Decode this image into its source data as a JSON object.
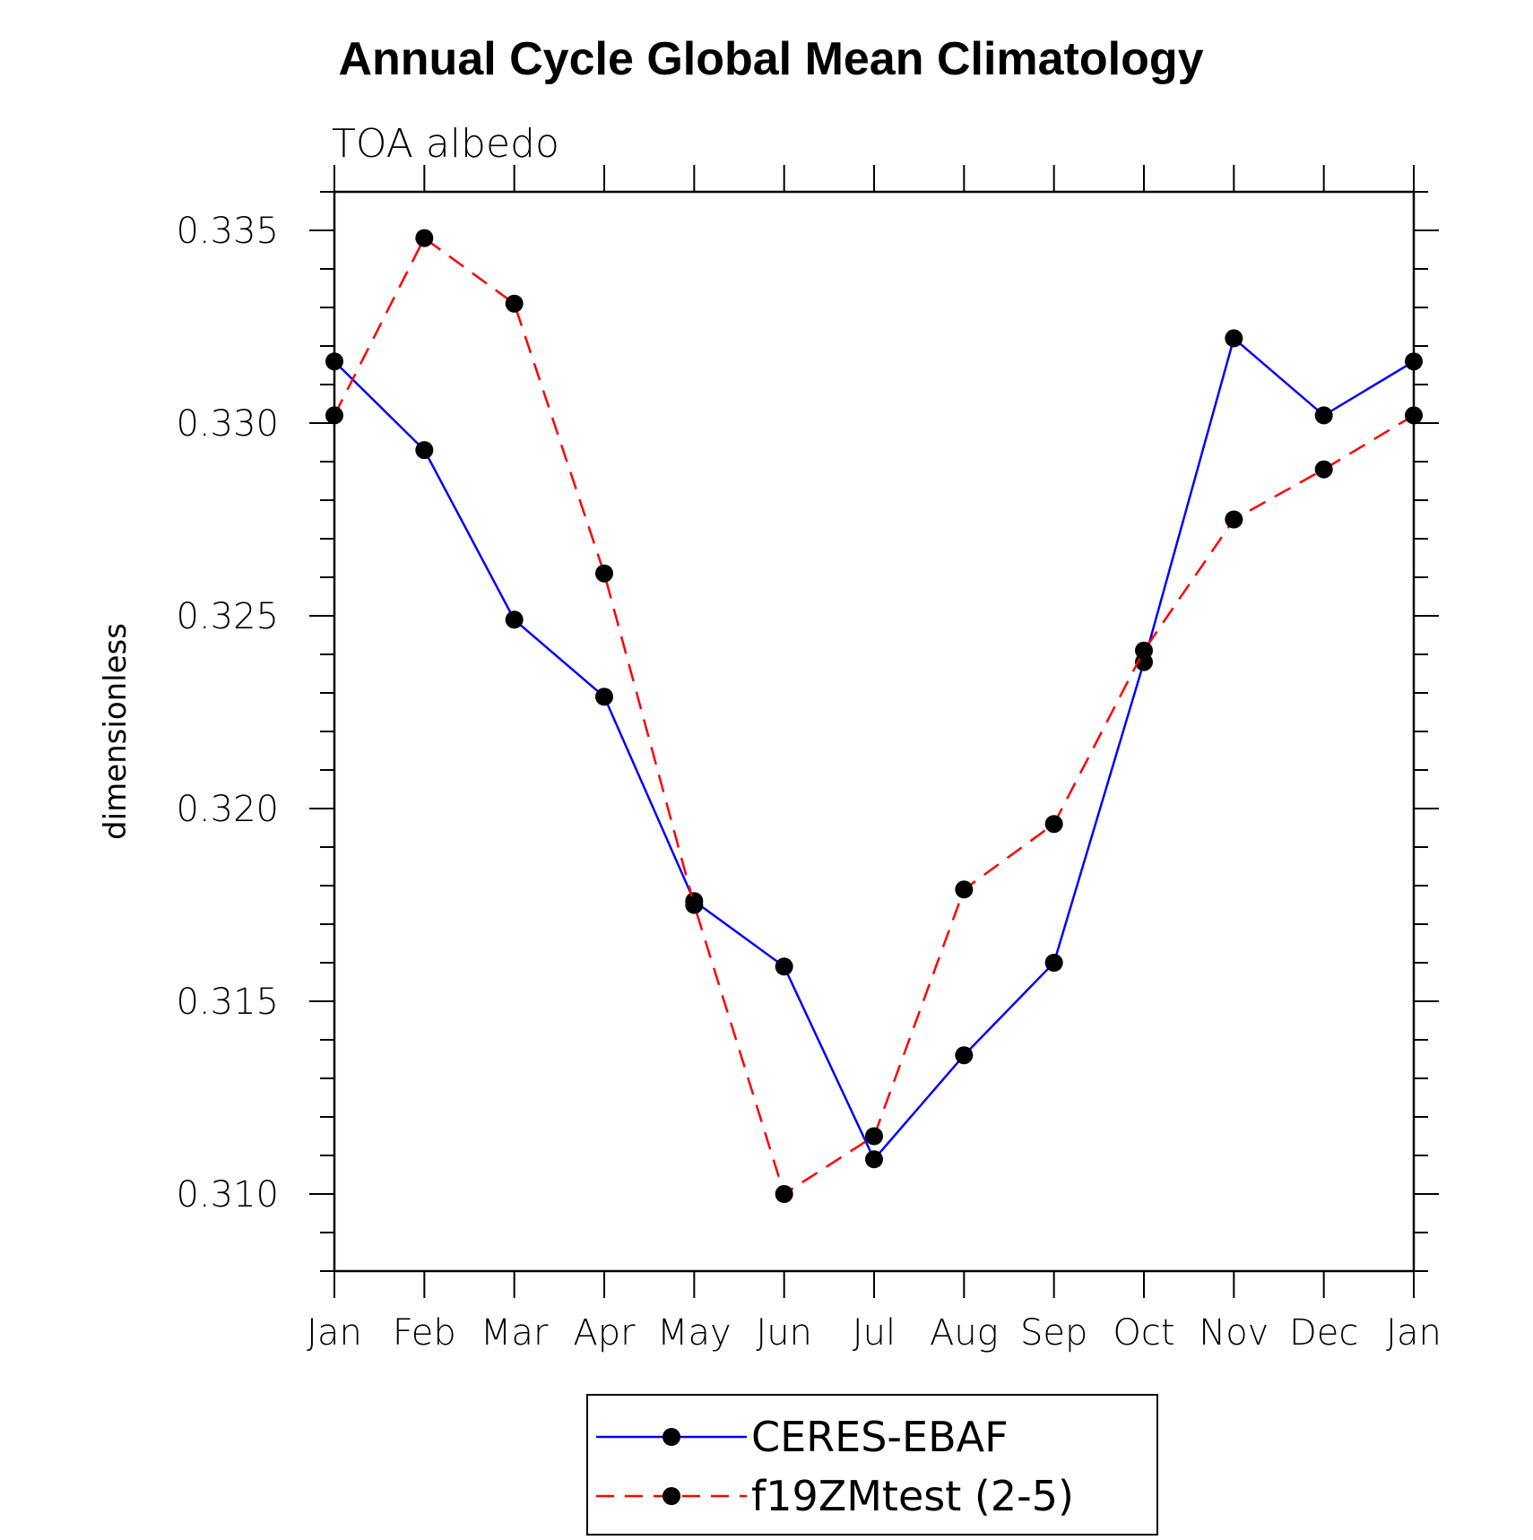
{
  "chart_data": {
    "type": "line",
    "title": "Annual Cycle Global Mean Climatology",
    "subtitle": "TOA albedo",
    "xlabel": "",
    "ylabel": "dimensionless",
    "categories": [
      "Jan",
      "Feb",
      "Mar",
      "Apr",
      "May",
      "Jun",
      "Jul",
      "Aug",
      "Sep",
      "Oct",
      "Nov",
      "Dec",
      "Jan"
    ],
    "ylim": [
      0.308,
      0.336
    ],
    "y_ticks": [
      0.31,
      0.315,
      0.32,
      0.325,
      0.33,
      0.335
    ],
    "y_tick_labels": [
      "0.310",
      "0.315",
      "0.320",
      "0.325",
      "0.330",
      "0.335"
    ],
    "series": [
      {
        "name": "CERES-EBAF",
        "color": "#0000ff",
        "dash": "solid",
        "marker": "filled-circle",
        "values": [
          0.3316,
          0.3293,
          0.3249,
          0.3229,
          0.3176,
          0.3159,
          0.3109,
          0.3136,
          0.316,
          0.3238,
          0.3322,
          0.3302,
          0.3316
        ]
      },
      {
        "name": "f19ZMtest (2-5)",
        "color": "#ff0000",
        "dash": "dashed",
        "marker": "filled-circle",
        "values": [
          0.3302,
          0.3348,
          0.3331,
          0.3261,
          0.3175,
          0.31,
          0.3115,
          0.3179,
          0.3196,
          0.3241,
          0.3275,
          0.3288,
          0.3302
        ]
      }
    ],
    "legend_position": "bottom-center"
  }
}
